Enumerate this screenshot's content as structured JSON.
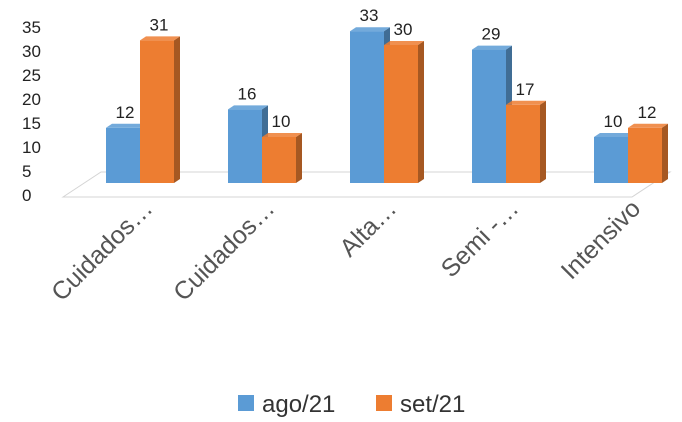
{
  "chart_data": {
    "type": "bar",
    "categories": [
      "Cuidados…",
      "Cuidados…",
      "Alta…",
      "Semi -…",
      "Intensivo"
    ],
    "series": [
      {
        "name": "ago/21",
        "values": [
          12,
          16,
          33,
          29,
          10
        ],
        "color": "#5B9BD5"
      },
      {
        "name": "set/21",
        "values": [
          31,
          10,
          30,
          17,
          12
        ],
        "color": "#ED7D31"
      }
    ],
    "y_ticks": [
      "0",
      "5",
      "10",
      "15",
      "20",
      "25",
      "30",
      "35"
    ],
    "ylim": [
      0,
      35
    ],
    "legend_position": "bottom",
    "grid": false,
    "three_d": true
  }
}
